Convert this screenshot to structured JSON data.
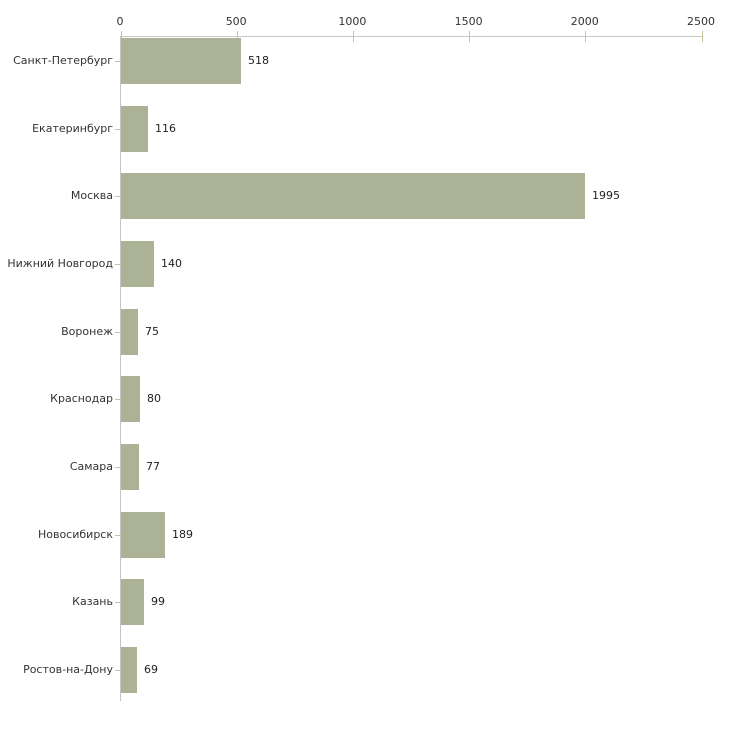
{
  "chart_data": {
    "type": "bar",
    "orientation": "horizontal",
    "title": "",
    "xlabel": "",
    "ylabel": "",
    "categories": [
      "Санкт-Петербург",
      "Екатеринбург",
      "Москва",
      "Нижний Новгород",
      "Воронеж",
      "Краснодар",
      "Самара",
      "Новосибирск",
      "Казань",
      "Ростов-на-Дону"
    ],
    "values": [
      518,
      116,
      1995,
      140,
      75,
      80,
      77,
      189,
      99,
      69
    ],
    "value_labels_shown": true,
    "xlim": [
      0,
      2500
    ],
    "x_ticks": [
      0,
      500,
      1000,
      1500,
      2000,
      2500
    ],
    "x_axis_position": "top",
    "grid": "off",
    "legend": "none",
    "colors": {
      "bar_fill": "#acb295",
      "axis_line": "#c8c8c8",
      "tick_mark": "#c9c39b",
      "text": "#333333",
      "background": "#ffffff"
    }
  }
}
